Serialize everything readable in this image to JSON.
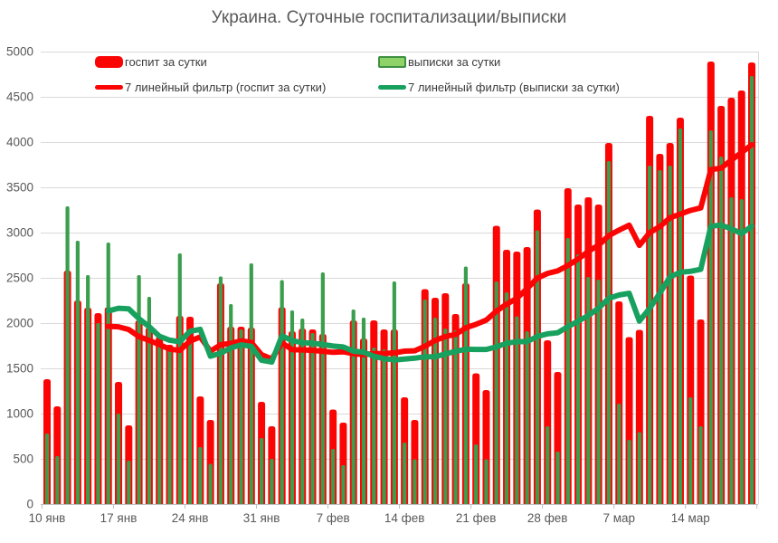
{
  "title": "Украина. Суточные госпитализации/выписки",
  "legend": {
    "hosp_bar": "госпит за сутки",
    "disch_bar": "выписки за сутки",
    "hosp_ma": "7 линейный фильтр (госпит за сутки)",
    "disch_ma": "7 линейный фильтр (выписки за сутки)"
  },
  "colors": {
    "red": "#fb0404",
    "bar_green": "#3a9e4d",
    "line_green": "#18a15e",
    "legend_green_fill": "#8fd268",
    "legend_green_border": "#3e9142",
    "grid": "#d9d9d9",
    "axis": "#bfbfbf",
    "tick_label": "#595959",
    "background": "#ffffff"
  },
  "chart_data": {
    "type": "bar",
    "title": "Украина. Суточные госпитализации/выписки",
    "xlabel": "",
    "ylabel": "",
    "ylim": [
      0,
      5000
    ],
    "grid": "horizontal",
    "legend_position": "top-left-inside",
    "n_days": 70,
    "start_label": "10 янв",
    "x_tick_labels": [
      "10 янв",
      "17 янв",
      "24 янв",
      "31 янв",
      "7 фев",
      "14 фев",
      "21 фев",
      "28 фев",
      "7 мар",
      "14 мар"
    ],
    "x_tick_day_indices": [
      0,
      7,
      14,
      21,
      28,
      35,
      42,
      49,
      56,
      63
    ],
    "y_ticks": [
      0,
      500,
      1000,
      1500,
      2000,
      2500,
      3000,
      3500,
      4000,
      4500,
      5000
    ],
    "series": [
      {
        "name": "госпит за сутки",
        "type": "bar",
        "values": [
          1380,
          1080,
          2580,
          2250,
          2170,
          2110,
          2175,
          1350,
          870,
          2030,
          1950,
          1850,
          1760,
          2080,
          2070,
          1190,
          930,
          2440,
          1960,
          1960,
          1950,
          1130,
          860,
          2175,
          1910,
          1940,
          1930,
          1880,
          1045,
          900,
          2030,
          1830,
          2030,
          1930,
          1930,
          1180,
          930,
          2375,
          2280,
          2330,
          2100,
          2440,
          1445,
          1260,
          3075,
          2810,
          2790,
          2840,
          3255,
          1810,
          1460,
          3490,
          3310,
          3390,
          3310,
          3990,
          2240,
          1845,
          1925,
          4290,
          3870,
          3990,
          4270,
          2525,
          2040,
          4890,
          4400,
          4490,
          4570,
          4880
        ]
      },
      {
        "name": "выписки за сутки",
        "type": "bar",
        "values": [
          780,
          530,
          3290,
          2910,
          2530,
          2000,
          2890,
          1000,
          480,
          2530,
          2290,
          1790,
          1700,
          2770,
          1810,
          630,
          445,
          2515,
          2210,
          1930,
          2660,
          730,
          500,
          2475,
          2140,
          2050,
          1890,
          2560,
          610,
          430,
          2150,
          2060,
          1730,
          1710,
          2460,
          680,
          495,
          2260,
          2060,
          1940,
          1920,
          2625,
          660,
          495,
          2460,
          2340,
          2075,
          1910,
          3025,
          860,
          580,
          2940,
          2760,
          2510,
          2480,
          3790,
          1110,
          710,
          795,
          3740,
          3690,
          3740,
          4150,
          1180,
          860,
          4130,
          3840,
          3390,
          3370,
          4730
        ]
      },
      {
        "name": "7 линейный фильтр (госпит за сутки)",
        "type": "line",
        "derived": "trailing_moving_average",
        "window": 7,
        "source_series": 0
      },
      {
        "name": "7 линейный фильтр (выписки за сутки)",
        "type": "line",
        "derived": "trailing_moving_average",
        "window": 7,
        "source_series": 1
      }
    ]
  }
}
